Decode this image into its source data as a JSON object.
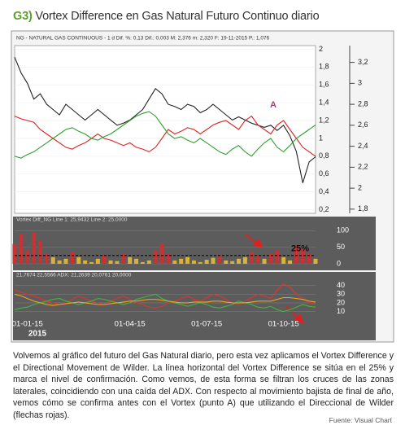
{
  "figure_label": "G3)",
  "title": "Vortex Difference en Gas Natural Futuro Continuo diario",
  "caption": "Volvemos al gráfico del futuro del Gas Natural diario, pero esta vez aplicamos el Vortex Difference y el Directional Movement de Wilder. La línea horizontal del Vortex Difference se sitúa en el 25% y marca el nivel de confirmación. Como vemos, de esta forma se filtran los cruces de las zonas laterales, coincidiendo con una caída del ADX. Con respecto al movimiento bajista de final de año, vemos cómo se confirma antes con el Vortex (punto A) que utilizando el Direccional de Wilder (flechas rojas).",
  "source": "Fuente: Visual Chart",
  "chart_data": [
    {
      "type": "line",
      "subtitle": "NG - NATURAL GAS CONTINUOUS - 1 d  Dif. %: 0,13  Dif.: 0,003  M: 2,376  m: 2,320  F: 19-11-2015  P.: 1,076",
      "annotations": [
        "A"
      ],
      "series": [
        {
          "color": "#222222",
          "axis": "y2",
          "values": [
            3.25,
            3.1,
            3.0,
            2.85,
            2.9,
            2.8,
            2.75,
            2.7,
            2.8,
            2.75,
            2.7,
            2.65,
            2.7,
            2.75,
            2.7,
            2.65,
            2.6,
            2.62,
            2.65,
            2.7,
            2.75,
            2.85,
            2.95,
            2.9,
            2.8,
            2.78,
            2.75,
            2.8,
            2.78,
            2.72,
            2.75,
            2.8,
            2.75,
            2.7,
            2.65,
            2.68,
            2.65,
            2.62,
            2.6,
            2.58,
            2.6,
            2.55,
            2.6,
            2.5,
            2.35,
            2.05,
            2.25,
            2.3
          ]
        },
        {
          "color": "#e02020",
          "values": [
            1.25,
            1.22,
            1.2,
            1.18,
            1.1,
            1.05,
            1.0,
            0.95,
            0.9,
            0.88,
            0.92,
            0.95,
            1.0,
            1.05,
            1.0,
            0.98,
            0.95,
            0.92,
            0.95,
            0.9,
            0.88,
            0.85,
            0.9,
            1.0,
            1.1,
            1.05,
            1.08,
            1.12,
            1.1,
            1.05,
            1.1,
            1.15,
            1.18,
            1.2,
            1.15,
            1.1,
            1.2,
            1.25,
            1.15,
            1.1,
            1.05,
            1.15,
            1.2,
            1.1,
            1.0,
            0.9,
            0.85,
            0.8
          ]
        },
        {
          "color": "#2ea02e",
          "values": [
            0.8,
            0.78,
            0.82,
            0.85,
            0.9,
            0.95,
            1.0,
            1.05,
            1.1,
            1.12,
            1.08,
            1.05,
            1.0,
            0.98,
            1.02,
            1.05,
            1.1,
            1.15,
            1.2,
            1.25,
            1.28,
            1.3,
            1.25,
            1.15,
            1.05,
            1.0,
            1.02,
            0.98,
            0.95,
            1.0,
            0.95,
            0.9,
            0.85,
            0.82,
            0.88,
            0.92,
            0.85,
            0.8,
            0.88,
            0.95,
            1.0,
            0.9,
            0.85,
            0.92,
            1.0,
            1.05,
            1.1,
            1.15
          ]
        }
      ],
      "ylim": [
        0.16,
        2.04
      ],
      "yticks": [
        {
          "value": 0.2,
          "label": "0,2"
        },
        {
          "value": 0.4,
          "label": "0,4"
        },
        {
          "value": 0.6,
          "label": "0,6"
        },
        {
          "value": 0.8,
          "label": "0,8"
        },
        1,
        {
          "value": 1.2,
          "label": "1,2"
        },
        {
          "value": 1.4,
          "label": "1,4"
        },
        {
          "value": 1.6,
          "label": "1,6"
        },
        {
          "value": 1.8,
          "label": "1,8"
        },
        2
      ],
      "y2lim": [
        1.76,
        3.36
      ],
      "y2ticks": [
        {
          "value": 1.8,
          "label": "1,8"
        },
        2,
        {
          "value": 2.2,
          "label": "2,2"
        },
        {
          "value": 2.4,
          "label": "2,4"
        },
        {
          "value": 2.6,
          "label": "2,6"
        },
        {
          "value": 2.8,
          "label": "2,8"
        },
        3,
        {
          "value": 3.2,
          "label": "3,2"
        }
      ]
    },
    {
      "type": "bar",
      "subtitle": "Vortex Diff_NG  Line 1: 25,9432  Line 2: 25,0000",
      "values": [
        60,
        90,
        40,
        95,
        70,
        30,
        20,
        10,
        15,
        35,
        20,
        10,
        5,
        15,
        25,
        10,
        8,
        30,
        20,
        15,
        5,
        10,
        40,
        60,
        30,
        10,
        15,
        20,
        10,
        5,
        12,
        18,
        25,
        10,
        8,
        15,
        20,
        35,
        25,
        15,
        30,
        40,
        20,
        10,
        55,
        45,
        30,
        15
      ],
      "color_above": "#c83232",
      "color_below": "#d8b23a",
      "hline": {
        "value": 25,
        "label": "25%"
      },
      "ylim": [
        -10,
        118
      ],
      "yticks": [
        0,
        50,
        100
      ]
    },
    {
      "type": "line",
      "subtitle": "21,7674   22,5566   ADX: 21,2639   20,0761   20,0000",
      "annotations": [
        "2015"
      ],
      "categories": [
        null,
        null,
        "01-01-15",
        null,
        null,
        null,
        null,
        null,
        null,
        null,
        null,
        null,
        null,
        null,
        null,
        null,
        null,
        null,
        "01-04-15",
        null,
        null,
        null,
        null,
        null,
        null,
        null,
        null,
        null,
        null,
        null,
        "01-07-15",
        null,
        null,
        null,
        null,
        null,
        null,
        null,
        null,
        null,
        null,
        null,
        "01-10-15",
        null,
        null,
        null,
        null,
        null
      ],
      "series": [
        {
          "color": "#e83030",
          "values": [
            35,
            32,
            30,
            28,
            25,
            22,
            20,
            18,
            20,
            24,
            28,
            25,
            22,
            20,
            18,
            22,
            25,
            28,
            24,
            20,
            18,
            15,
            14,
            16,
            20,
            22,
            25,
            28,
            24,
            22,
            26,
            30,
            28,
            24,
            20,
            18,
            22,
            26,
            30,
            28,
            25,
            35,
            42,
            38,
            30,
            25,
            20,
            18
          ]
        },
        {
          "color": "#3cb83c",
          "values": [
            12,
            14,
            15,
            18,
            20,
            22,
            24,
            25,
            22,
            20,
            18,
            20,
            22,
            25,
            24,
            22,
            20,
            18,
            20,
            24,
            26,
            28,
            30,
            25,
            22,
            20,
            18,
            16,
            18,
            20,
            18,
            15,
            14,
            16,
            18,
            22,
            20,
            18,
            15,
            14,
            16,
            12,
            10,
            12,
            15,
            18,
            16,
            15
          ]
        },
        {
          "color": "#f0a020",
          "values": [
            30,
            28,
            25,
            22,
            20,
            18,
            17,
            18,
            19,
            20,
            21,
            20,
            19,
            18,
            18,
            19,
            20,
            21,
            22,
            22,
            23,
            24,
            24,
            23,
            22,
            21,
            20,
            20,
            21,
            21,
            21,
            22,
            22,
            21,
            20,
            20,
            20,
            21,
            22,
            22,
            22,
            24,
            26,
            26,
            25,
            24,
            22,
            21
          ]
        }
      ],
      "ylim": [
        3,
        50
      ],
      "yticks": [
        10,
        20,
        30,
        40
      ]
    }
  ]
}
